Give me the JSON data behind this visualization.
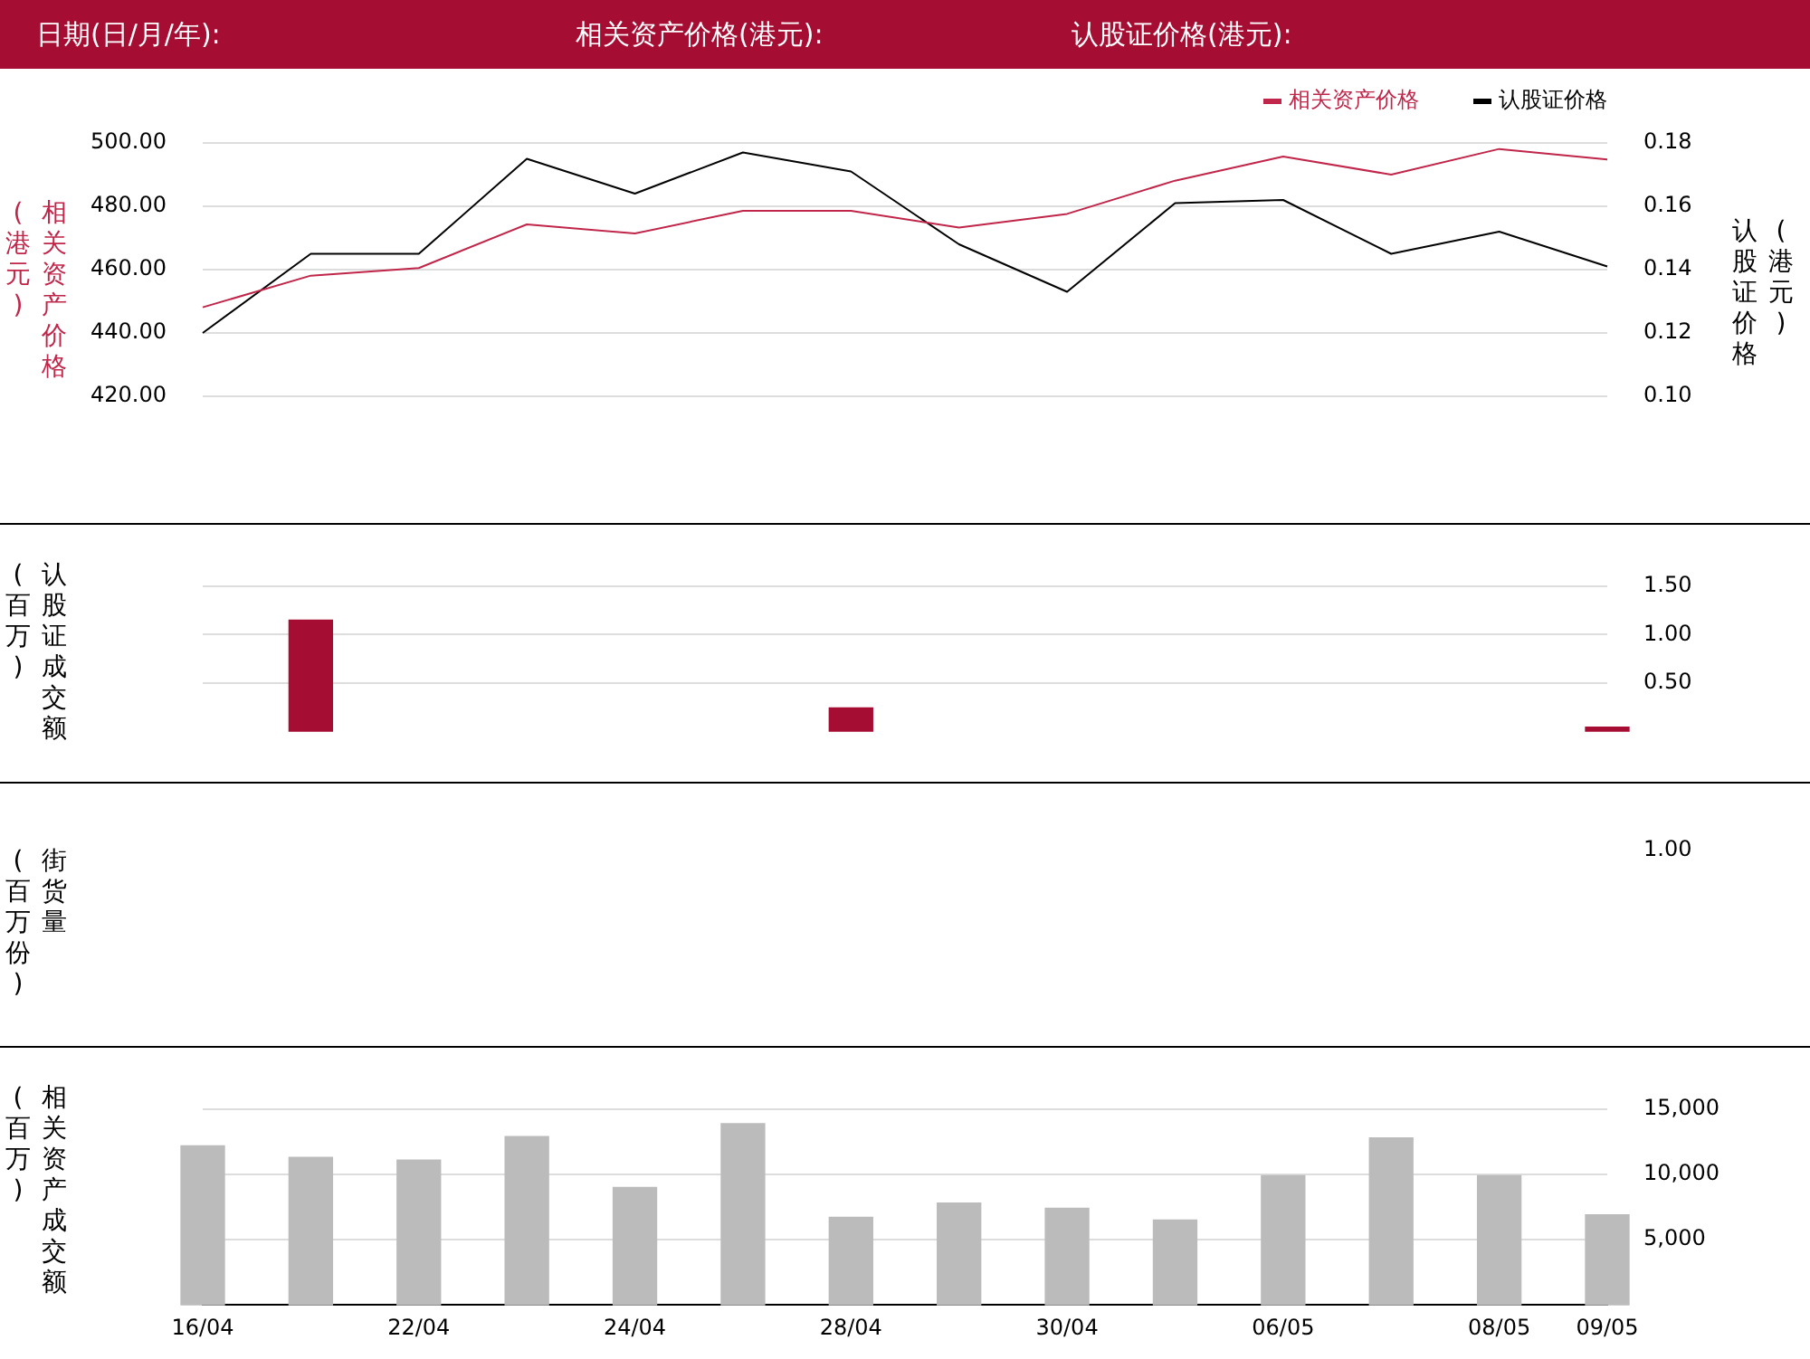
{
  "chart_data": [
    {
      "type": "other",
      "annotations": [
        "日期(日/月/年):",
        "相关资产价格(港元):",
        "认股证价格(港元):"
      ]
    },
    {
      "type": "line",
      "categories": [
        null,
        null,
        null,
        null,
        null,
        null,
        null,
        null,
        null,
        null,
        null,
        null,
        null,
        null
      ],
      "series": [
        {
          "name": "相关资产价格",
          "color": "#c0254a",
          "values": [
            448.1,
            458.1,
            460.5,
            474.3,
            471.4,
            478.6,
            478.6,
            473.3,
            477.6,
            488.1,
            495.7,
            490,
            498.1,
            494.8
          ]
        },
        {
          "name": "认股证价格",
          "color": "#000000",
          "axis": "y2",
          "values": [
            0.12,
            0.145,
            0.145,
            0.175,
            0.164,
            0.177,
            0.171,
            0.148,
            0.133,
            0.161,
            0.162,
            0.145,
            0.152,
            0.141
          ]
        }
      ],
      "ylabel": "相关资产价格(港元)",
      "y2label": "认股证价格(港元)",
      "ylim": [
        420,
        500
      ],
      "yticks": [
        {
          "value": 420,
          "label": "420.00"
        },
        {
          "value": 440,
          "label": "440.00"
        },
        {
          "value": 460,
          "label": "460.00"
        },
        {
          "value": 480,
          "label": "480.00"
        },
        {
          "value": 500,
          "label": "500.00"
        }
      ],
      "y2lim": [
        0.1,
        0.18
      ],
      "y2ticks": [
        {
          "value": 0.1,
          "label": "0.10"
        },
        {
          "value": 0.12,
          "label": "0.12"
        },
        {
          "value": 0.14,
          "label": "0.14"
        },
        {
          "value": 0.16,
          "label": "0.16"
        },
        {
          "value": 0.18,
          "label": "0.18"
        }
      ],
      "grid": "y",
      "legend": "top right",
      "marker": "none",
      "line_style": "solid",
      "tick_labels": "y"
    },
    {
      "type": "bar",
      "categories": [
        null,
        null,
        null,
        null,
        null,
        null,
        null,
        null,
        null,
        null,
        null,
        null,
        null,
        null
      ],
      "values": [
        null,
        1.15,
        null,
        null,
        null,
        null,
        0.24,
        null,
        null,
        null,
        null,
        null,
        null,
        0.04
      ],
      "color": "#a50d33",
      "ylabel": "认股证成交额(百万)",
      "ylim": [
        0,
        1.5
      ],
      "yticks": [
        {
          "value": 0.5,
          "label": "0.50"
        },
        {
          "value": 1,
          "label": "1.00"
        },
        {
          "value": 1.5,
          "label": "1.50"
        }
      ],
      "grid": "y",
      "tick_labels": "y"
    },
    {
      "type": "other",
      "ylabel": "街货量(百万份)",
      "annotations": [
        "1.00"
      ]
    },
    {
      "type": "bar",
      "categories": [
        "16/04",
        null,
        "22/04",
        null,
        "24/04",
        null,
        "28/04",
        null,
        "30/04",
        null,
        "06/05",
        null,
        "08/05",
        "09/05"
      ],
      "values": [
        12200,
        11300,
        11100,
        12900,
        9000,
        13900,
        6700,
        7800,
        7400,
        6500,
        9900,
        12800,
        9900,
        6900
      ],
      "color": "#bbbbbb",
      "ylabel": "相关资产成交额(百万)",
      "ylim": [
        0,
        15000
      ],
      "yticks": [
        {
          "value": 5000,
          "label": "5,000"
        },
        {
          "value": 10000,
          "label": "10,000"
        },
        {
          "value": 15000,
          "label": "15,000"
        }
      ],
      "grid": "y"
    }
  ]
}
